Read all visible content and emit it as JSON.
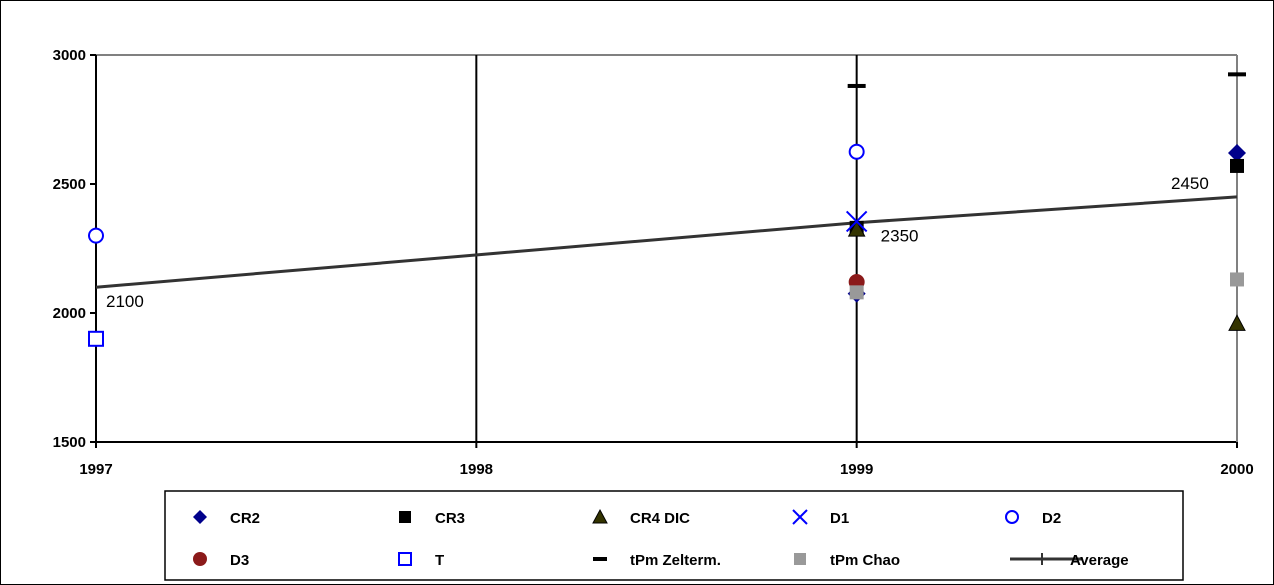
{
  "chart_data": {
    "type": "scatter",
    "xlim": [
      1997,
      2000
    ],
    "ylim": [
      1500,
      3000
    ],
    "x_ticks": [
      1997,
      1998,
      1999,
      2000
    ],
    "y_ticks": [
      1500,
      2000,
      2500,
      3000
    ],
    "grid": "vertical lines at x ticks",
    "legend_position": "bottom",
    "series": [
      {
        "name": "CR2",
        "marker": "diamond",
        "color": "#00008B",
        "points": [
          [
            1999,
            2075
          ],
          [
            2000,
            2620
          ]
        ]
      },
      {
        "name": "CR3",
        "marker": "square",
        "color": "#000000",
        "points": [
          [
            1999,
            2330
          ],
          [
            2000,
            2570
          ]
        ]
      },
      {
        "name": "CR4 DIC",
        "marker": "triangle",
        "color": "#333300",
        "points": [
          [
            1999,
            2325
          ],
          [
            2000,
            1960
          ]
        ]
      },
      {
        "name": "D1",
        "marker": "x",
        "color": "#0000FF",
        "points": [
          [
            1999,
            2355
          ]
        ]
      },
      {
        "name": "D2",
        "marker": "circle-open",
        "color": "#0000FF",
        "points": [
          [
            1997,
            2300
          ],
          [
            1999,
            2625
          ]
        ]
      },
      {
        "name": "D3",
        "marker": "circle",
        "color": "#8B1A1A",
        "points": [
          [
            1999,
            2120
          ]
        ]
      },
      {
        "name": "T",
        "marker": "square-open",
        "color": "#0000FF",
        "points": [
          [
            1997,
            1900
          ]
        ]
      },
      {
        "name": "tPm Zelterm.",
        "marker": "dash",
        "color": "#000000",
        "points": [
          [
            1999,
            2880
          ],
          [
            2000,
            2925
          ]
        ]
      },
      {
        "name": "tPm Chao",
        "marker": "square",
        "color": "#999999",
        "points": [
          [
            1999,
            2080
          ],
          [
            2000,
            2130
          ]
        ]
      },
      {
        "name": "Average",
        "marker": "line",
        "color": "#333333",
        "points": [
          [
            1997,
            2100
          ],
          [
            1999,
            2350
          ],
          [
            2000,
            2450
          ]
        ]
      }
    ],
    "data_labels": [
      {
        "text": "2100",
        "x": 1997,
        "y": 2100
      },
      {
        "text": "2350",
        "x": 1999,
        "y": 2350
      },
      {
        "text": "2450",
        "x": 2000,
        "y": 2450
      }
    ]
  }
}
